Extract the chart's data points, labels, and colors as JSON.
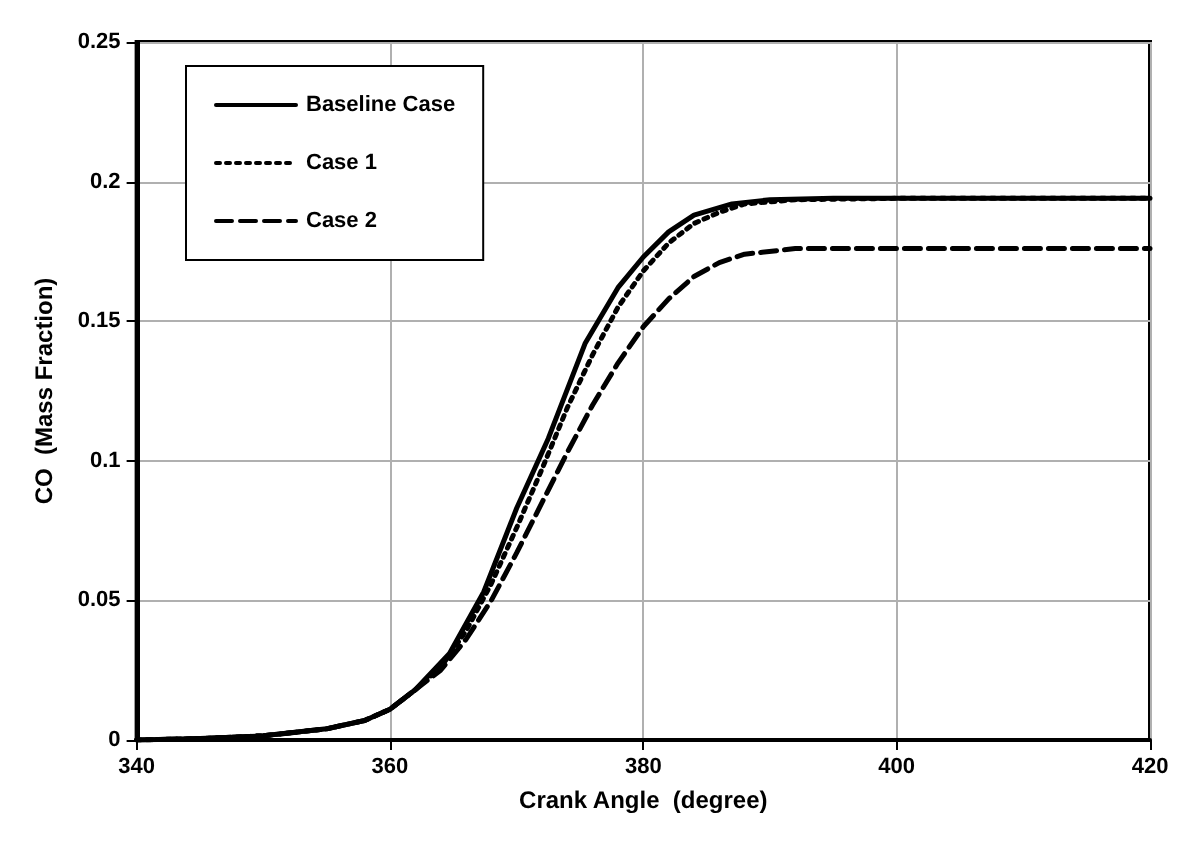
{
  "chart_data": {
    "type": "line",
    "xlabel": "Crank Angle  (degree)",
    "ylabel": "CO  (Mass Fraction)",
    "xlim": [
      340,
      420
    ],
    "xticks": [
      340,
      360,
      380,
      400,
      420
    ],
    "ylim": [
      0,
      0.25
    ],
    "yticks": [
      0,
      0.05,
      0.1,
      0.15,
      0.2,
      0.25
    ],
    "grid": true,
    "legend": "top left",
    "marker": "none",
    "series": [
      {
        "name": "Baseline Case",
        "color": "#000000",
        "line_style": "solid",
        "x": [
          340,
          345,
          350,
          355,
          358,
          360,
          362,
          364.7,
          367.4,
          370,
          372.5,
          375.4,
          378,
          380,
          382,
          384,
          387,
          390,
          395,
          420
        ],
        "values": [
          0,
          0.0005,
          0.0015,
          0.004,
          0.007,
          0.011,
          0.018,
          0.031,
          0.053,
          0.083,
          0.108,
          0.142,
          0.162,
          0.173,
          0.182,
          0.188,
          0.192,
          0.1935,
          0.194,
          0.194
        ]
      },
      {
        "name": "Case 1",
        "color": "#000000",
        "line_style": "dotted",
        "x": [
          340,
          345,
          350,
          355,
          358,
          360,
          362,
          364,
          366,
          368,
          370,
          372,
          374,
          376,
          378,
          380,
          382,
          384,
          386,
          388,
          392,
          400,
          420
        ],
        "values": [
          0,
          0.0005,
          0.0015,
          0.004,
          0.007,
          0.011,
          0.018,
          0.026,
          0.039,
          0.056,
          0.076,
          0.097,
          0.119,
          0.138,
          0.155,
          0.168,
          0.178,
          0.185,
          0.189,
          0.192,
          0.1935,
          0.194,
          0.194
        ]
      },
      {
        "name": "Case 2",
        "color": "#000000",
        "line_style": "dashed",
        "x": [
          340,
          345,
          350,
          355,
          358,
          360,
          362,
          364,
          366,
          368,
          370,
          372,
          374,
          376,
          378,
          380,
          382,
          384,
          386,
          388,
          392,
          420
        ],
        "values": [
          0,
          0.0005,
          0.0015,
          0.004,
          0.007,
          0.011,
          0.018,
          0.025,
          0.036,
          0.05,
          0.067,
          0.085,
          0.103,
          0.12,
          0.135,
          0.148,
          0.158,
          0.166,
          0.171,
          0.174,
          0.176,
          0.176
        ]
      }
    ]
  }
}
